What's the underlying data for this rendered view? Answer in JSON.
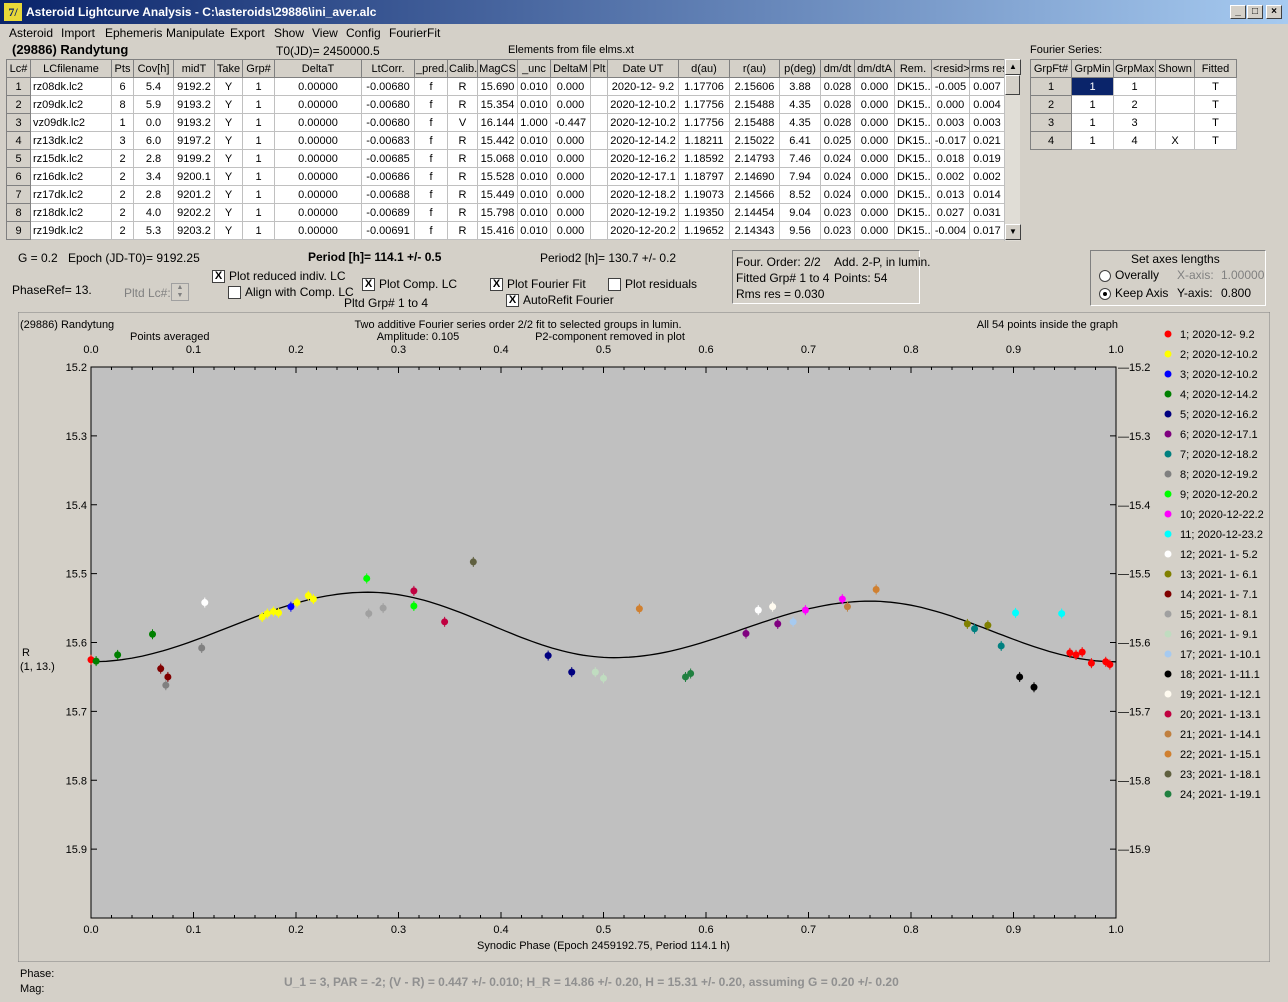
{
  "window": {
    "title": "Asteroid Lightcurve Analysis - C:\\asteroids\\29886\\ini_aver.alc",
    "icon_label": "7/"
  },
  "menu": [
    "Asteroid",
    "Import",
    "Ephemeris",
    "Manipulate",
    "Export",
    "Show",
    "View",
    "Config",
    "FourierFit"
  ],
  "header": {
    "asteroid": "(29886) Randytung",
    "t0": "T0(JD)= 2450000.5",
    "elements": "Elements from file elms.xt"
  },
  "lc_table": {
    "columns": [
      "Lc#",
      "LCfilename",
      "Pts",
      "Cov[h]",
      "midT",
      "Take",
      "Grp#",
      "DeltaT",
      "LtCorr.",
      "_pred.",
      "Calib.",
      "MagCS",
      "_unc",
      "DeltaM",
      "Plt",
      "Date UT",
      "d(au)",
      "r(au)",
      "p(deg)",
      "dm/dt",
      "dm/dtA",
      "Rem.",
      "<resid>",
      "rms res"
    ],
    "rows": [
      [
        "1",
        "rz08dk.lc2",
        "6",
        "5.4",
        "9192.2",
        "Y",
        "1",
        "0.00000",
        "-0.00680",
        "f",
        "R",
        "15.690",
        "0.010",
        "0.000",
        "",
        "2020-12- 9.2",
        "1.17706",
        "2.15606",
        "3.88",
        "0.028",
        "0.000",
        "DK15..",
        "-0.005",
        "0.007"
      ],
      [
        "2",
        "rz09dk.lc2",
        "8",
        "5.9",
        "9193.2",
        "Y",
        "1",
        "0.00000",
        "-0.00680",
        "f",
        "R",
        "15.354",
        "0.010",
        "0.000",
        "",
        "2020-12-10.2",
        "1.17756",
        "2.15488",
        "4.35",
        "0.028",
        "0.000",
        "DK15..",
        "0.000",
        "0.004"
      ],
      [
        "3",
        "vz09dk.lc2",
        "1",
        "0.0",
        "9193.2",
        "Y",
        "1",
        "0.00000",
        "-0.00680",
        "f",
        "V",
        "16.144",
        "1.000",
        "-0.447",
        "",
        "2020-12-10.2",
        "1.17756",
        "2.15488",
        "4.35",
        "0.028",
        "0.000",
        "DK15..",
        "0.003",
        "0.003"
      ],
      [
        "4",
        "rz13dk.lc2",
        "3",
        "6.0",
        "9197.2",
        "Y",
        "1",
        "0.00000",
        "-0.00683",
        "f",
        "R",
        "15.442",
        "0.010",
        "0.000",
        "",
        "2020-12-14.2",
        "1.18211",
        "2.15022",
        "6.41",
        "0.025",
        "0.000",
        "DK15..",
        "-0.017",
        "0.021"
      ],
      [
        "5",
        "rz15dk.lc2",
        "2",
        "2.8",
        "9199.2",
        "Y",
        "1",
        "0.00000",
        "-0.00685",
        "f",
        "R",
        "15.068",
        "0.010",
        "0.000",
        "",
        "2020-12-16.2",
        "1.18592",
        "2.14793",
        "7.46",
        "0.024",
        "0.000",
        "DK15..",
        "0.018",
        "0.019"
      ],
      [
        "6",
        "rz16dk.lc2",
        "2",
        "3.4",
        "9200.1",
        "Y",
        "1",
        "0.00000",
        "-0.00686",
        "f",
        "R",
        "15.528",
        "0.010",
        "0.000",
        "",
        "2020-12-17.1",
        "1.18797",
        "2.14690",
        "7.94",
        "0.024",
        "0.000",
        "DK15..",
        "0.002",
        "0.002"
      ],
      [
        "7",
        "rz17dk.lc2",
        "2",
        "2.8",
        "9201.2",
        "Y",
        "1",
        "0.00000",
        "-0.00688",
        "f",
        "R",
        "15.449",
        "0.010",
        "0.000",
        "",
        "2020-12-18.2",
        "1.19073",
        "2.14566",
        "8.52",
        "0.024",
        "0.000",
        "DK15..",
        "0.013",
        "0.014"
      ],
      [
        "8",
        "rz18dk.lc2",
        "2",
        "4.0",
        "9202.2",
        "Y",
        "1",
        "0.00000",
        "-0.00689",
        "f",
        "R",
        "15.798",
        "0.010",
        "0.000",
        "",
        "2020-12-19.2",
        "1.19350",
        "2.14454",
        "9.04",
        "0.023",
        "0.000",
        "DK15..",
        "0.027",
        "0.031"
      ],
      [
        "9",
        "rz19dk.lc2",
        "2",
        "5.3",
        "9203.2",
        "Y",
        "1",
        "0.00000",
        "-0.00691",
        "f",
        "R",
        "15.416",
        "0.010",
        "0.000",
        "",
        "2020-12-20.2",
        "1.19652",
        "2.14343",
        "9.56",
        "0.023",
        "0.000",
        "DK15..",
        "-0.004",
        "0.017"
      ]
    ]
  },
  "fourier_table": {
    "label": "Fourier Series:",
    "columns": [
      "GrpFt#",
      "GrpMin",
      "GrpMax",
      "Shown",
      "Fitted"
    ],
    "rows": [
      [
        "1",
        "1",
        "1",
        "",
        "T"
      ],
      [
        "2",
        "1",
        "2",
        "",
        "T"
      ],
      [
        "3",
        "1",
        "3",
        "",
        "T"
      ],
      [
        "4",
        "1",
        "4",
        "X",
        "T"
      ]
    ]
  },
  "controls": {
    "g": "G = 0.2",
    "epoch": "Epoch (JD-T0)= 9192.25",
    "period": "Period [h]= 114.1 +/- 0.5",
    "period2": "Period2 [h]= 130.7 +/- 0.2",
    "phaseref": "PhaseRef= 13.",
    "pltd_lc": "Pltd Lc#:",
    "plot_reduced": "Plot reduced indiv. LC",
    "align": "Align with Comp. LC",
    "plot_comp": "Plot Comp. LC",
    "pltd_grp": "Pltd Grp#  1   to   4",
    "plot_fourier": "Plot Fourier Fit",
    "autorefit": "AutoRefit Fourier",
    "plot_residuals": "Plot residuals",
    "check": "X"
  },
  "fourier_info": {
    "order": "Four. Order:  2/2",
    "add": "Add. 2-P, in lumin.",
    "fitted": "Fitted Grp# 1 to 4",
    "points": "Points: 54",
    "rms": "Rms res      = 0.030"
  },
  "axes_box": {
    "title": "Set axes lengths",
    "overally": "Overally",
    "keep": "Keep Axis",
    "xaxis_label": "X-axis:",
    "xaxis_val": "1.00000",
    "yaxis_label": "Y-axis:",
    "yaxis_val": "0.800"
  },
  "chart_data": {
    "type": "scatter",
    "title_left": "(29886) Randytung",
    "subtitle_left": "Points averaged",
    "title_center": "Two additive Fourier series order 2/2 fit to selected groups in lumin.",
    "amplitude": "Amplitude: 0.105",
    "p2": "P2-component removed in plot",
    "title_right": "All 54 points inside the graph",
    "xlabel": "Synodic Phase (Epoch 2459192.75, Period 114.1 h)",
    "ylabel": "R",
    "ylabel2": "(1, 13.)",
    "xlim": [
      0,
      1
    ],
    "ylim": [
      15.2,
      16.0
    ],
    "y_reversed": true,
    "xticks": [
      "0.0",
      "0.1",
      "0.2",
      "0.3",
      "0.4",
      "0.5",
      "0.6",
      "0.7",
      "0.8",
      "0.9",
      "1.0"
    ],
    "yticks": [
      "15.2",
      "15.3",
      "15.4",
      "15.5",
      "15.6",
      "15.7",
      "15.8",
      "15.9"
    ],
    "legend": [
      {
        "label": "1; 2020-12- 9.2",
        "color": "#ff0000"
      },
      {
        "label": "2; 2020-12-10.2",
        "color": "#ffff00"
      },
      {
        "label": "3; 2020-12-10.2",
        "color": "#0000ff"
      },
      {
        "label": "4; 2020-12-14.2",
        "color": "#008000"
      },
      {
        "label": "5; 2020-12-16.2",
        "color": "#000080"
      },
      {
        "label": "6; 2020-12-17.1",
        "color": "#800080"
      },
      {
        "label": "7; 2020-12-18.2",
        "color": "#008080"
      },
      {
        "label": "8; 2020-12-19.2",
        "color": "#808080"
      },
      {
        "label": "9; 2020-12-20.2",
        "color": "#00ff00"
      },
      {
        "label": "10; 2020-12-22.2",
        "color": "#ff00ff"
      },
      {
        "label": "11; 2020-12-23.2",
        "color": "#00ffff"
      },
      {
        "label": "12; 2021- 1- 5.2",
        "color": "#ffffff"
      },
      {
        "label": "13; 2021- 1- 6.1",
        "color": "#808000"
      },
      {
        "label": "14; 2021- 1- 7.1",
        "color": "#800000"
      },
      {
        "label": "15; 2021- 1- 8.1",
        "color": "#a0a0a0"
      },
      {
        "label": "16; 2021- 1- 9.1",
        "color": "#c0dcc0"
      },
      {
        "label": "17; 2021- 1-10.1",
        "color": "#a6caf0"
      },
      {
        "label": "18; 2021- 1-11.1",
        "color": "#000000"
      },
      {
        "label": "19; 2021- 1-12.1",
        "color": "#fffbf0"
      },
      {
        "label": "20; 2021- 1-13.1",
        "color": "#c00040"
      },
      {
        "label": "21; 2021- 1-14.1",
        "color": "#c08040"
      },
      {
        "label": "22; 2021- 1-15.1",
        "color": "#d08030"
      },
      {
        "label": "23; 2021- 1-18.1",
        "color": "#606040"
      },
      {
        "label": "24; 2021- 1-19.1",
        "color": "#208040"
      }
    ],
    "points": [
      {
        "x": 0.0,
        "y": 15.625,
        "g": 0
      },
      {
        "x": 0.005,
        "y": 15.627,
        "g": 3
      },
      {
        "x": 0.026,
        "y": 15.618,
        "g": 3
      },
      {
        "x": 0.06,
        "y": 15.588,
        "g": 3
      },
      {
        "x": 0.068,
        "y": 15.638,
        "g": 13
      },
      {
        "x": 0.073,
        "y": 15.662,
        "g": 7
      },
      {
        "x": 0.075,
        "y": 15.65,
        "g": 13
      },
      {
        "x": 0.108,
        "y": 15.608,
        "g": 7
      },
      {
        "x": 0.111,
        "y": 15.542,
        "g": 11
      },
      {
        "x": 0.167,
        "y": 15.563,
        "g": 1
      },
      {
        "x": 0.172,
        "y": 15.558,
        "g": 1
      },
      {
        "x": 0.178,
        "y": 15.555,
        "g": 1
      },
      {
        "x": 0.183,
        "y": 15.557,
        "g": 1
      },
      {
        "x": 0.195,
        "y": 15.548,
        "g": 2
      },
      {
        "x": 0.201,
        "y": 15.542,
        "g": 1
      },
      {
        "x": 0.212,
        "y": 15.532,
        "g": 1
      },
      {
        "x": 0.217,
        "y": 15.537,
        "g": 1
      },
      {
        "x": 0.269,
        "y": 15.507,
        "g": 8
      },
      {
        "x": 0.271,
        "y": 15.558,
        "g": 14
      },
      {
        "x": 0.285,
        "y": 15.55,
        "g": 14
      },
      {
        "x": 0.315,
        "y": 15.525,
        "g": 19
      },
      {
        "x": 0.315,
        "y": 15.547,
        "g": 8
      },
      {
        "x": 0.345,
        "y": 15.57,
        "g": 19
      },
      {
        "x": 0.373,
        "y": 15.483,
        "g": 22
      },
      {
        "x": 0.446,
        "y": 15.619,
        "g": 4
      },
      {
        "x": 0.469,
        "y": 15.643,
        "g": 4
      },
      {
        "x": 0.492,
        "y": 15.643,
        "g": 15
      },
      {
        "x": 0.5,
        "y": 15.652,
        "g": 15
      },
      {
        "x": 0.535,
        "y": 15.551,
        "g": 21
      },
      {
        "x": 0.58,
        "y": 15.65,
        "g": 23
      },
      {
        "x": 0.585,
        "y": 15.645,
        "g": 23
      },
      {
        "x": 0.639,
        "y": 15.587,
        "g": 5
      },
      {
        "x": 0.651,
        "y": 15.553,
        "g": 11
      },
      {
        "x": 0.665,
        "y": 15.548,
        "g": 18
      },
      {
        "x": 0.67,
        "y": 15.573,
        "g": 5
      },
      {
        "x": 0.685,
        "y": 15.57,
        "g": 16
      },
      {
        "x": 0.697,
        "y": 15.553,
        "g": 9
      },
      {
        "x": 0.733,
        "y": 15.537,
        "g": 9
      },
      {
        "x": 0.738,
        "y": 15.548,
        "g": 20
      },
      {
        "x": 0.766,
        "y": 15.523,
        "g": 21
      },
      {
        "x": 0.855,
        "y": 15.573,
        "g": 12
      },
      {
        "x": 0.862,
        "y": 15.58,
        "g": 6
      },
      {
        "x": 0.875,
        "y": 15.575,
        "g": 12
      },
      {
        "x": 0.888,
        "y": 15.605,
        "g": 6
      },
      {
        "x": 0.902,
        "y": 15.557,
        "g": 10
      },
      {
        "x": 0.906,
        "y": 15.65,
        "g": 17
      },
      {
        "x": 0.92,
        "y": 15.665,
        "g": 17
      },
      {
        "x": 0.947,
        "y": 15.558,
        "g": 10
      },
      {
        "x": 0.955,
        "y": 15.615,
        "g": 0
      },
      {
        "x": 0.961,
        "y": 15.618,
        "g": 0
      },
      {
        "x": 0.967,
        "y": 15.614,
        "g": 0
      },
      {
        "x": 0.976,
        "y": 15.63,
        "g": 0
      },
      {
        "x": 0.99,
        "y": 15.628,
        "g": 0
      },
      {
        "x": 0.994,
        "y": 15.632,
        "g": 0
      }
    ],
    "fit_curve": {
      "mean": 15.575,
      "a1": -0.01,
      "b1": -0.007,
      "a2": 0.0,
      "b2": 0.0,
      "p": [
        0.0,
        0.27,
        0.51,
        0.76,
        1.0
      ],
      "y": [
        15.628,
        15.527,
        15.622,
        15.54,
        15.628
      ]
    }
  },
  "footer": {
    "phase": "Phase:",
    "mag": "Mag:",
    "info": "U_1 = 3, PAR = -2; (V - R) = 0.447 +/- 0.010; H_R = 14.86 +/- 0.20, H = 15.31 +/- 0.20, assuming G = 0.20 +/- 0.20"
  }
}
